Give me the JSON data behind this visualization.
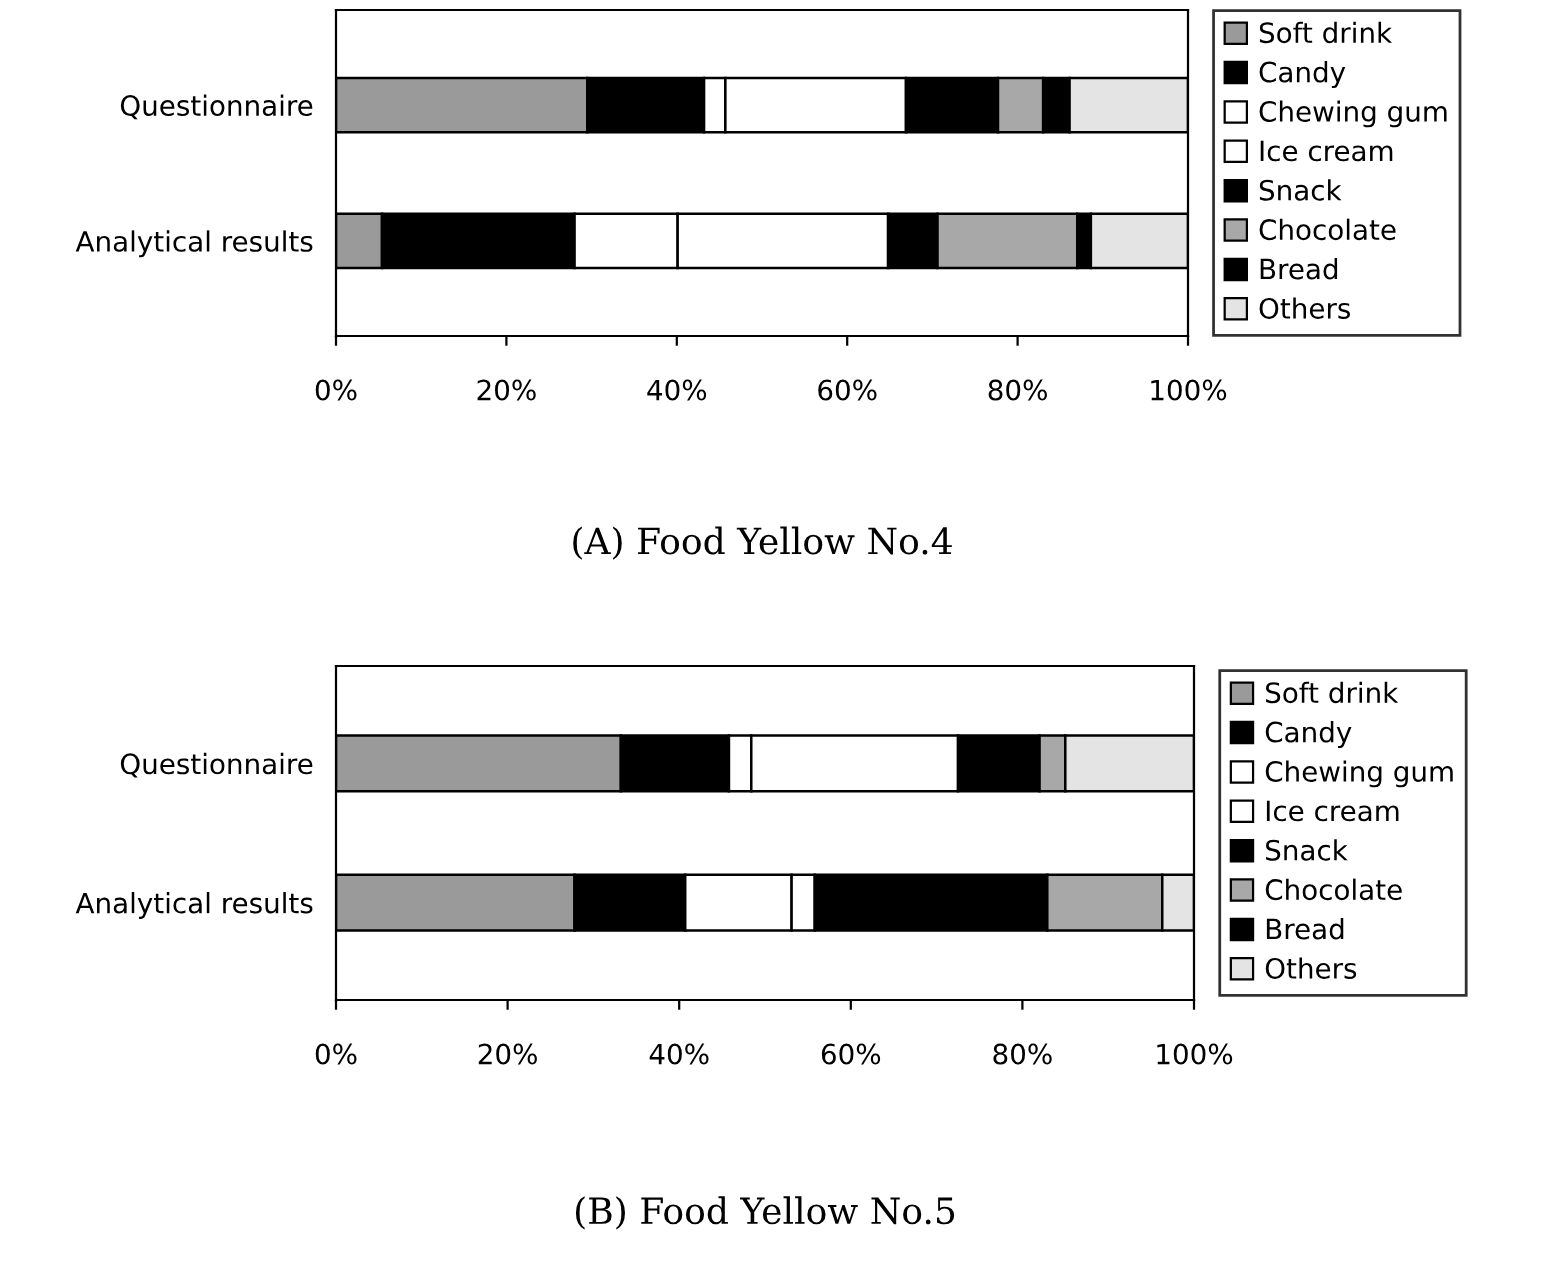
{
  "chart_data": [
    {
      "type": "bar",
      "stacked": true,
      "orientation": "horizontal",
      "title": "(A) Food Yellow No.4",
      "categories": [
        "Questionnaire",
        "Analytical results"
      ],
      "series": [
        {
          "name": "Soft drink",
          "color": "#9a9a9a",
          "values": [
            29.5,
            5.4
          ]
        },
        {
          "name": "Candy",
          "color": "#000000",
          "values": [
            13.7,
            22.6
          ]
        },
        {
          "name": "Chewing gum",
          "color": "#ffffff",
          "values": [
            2.5,
            12.1
          ]
        },
        {
          "name": "Ice cream",
          "color": "#ffffff",
          "values": [
            21.2,
            24.7
          ]
        },
        {
          "name": "Snack",
          "color": "#000000",
          "values": [
            10.8,
            5.8
          ]
        },
        {
          "name": "Chocolate",
          "color": "#a8a8a8",
          "values": [
            5.3,
            16.4
          ]
        },
        {
          "name": "Bread",
          "color": "#000000",
          "values": [
            3.1,
            1.6
          ]
        },
        {
          "name": "Others",
          "color": "#e4e4e4",
          "values": [
            13.9,
            11.4
          ]
        }
      ],
      "xlim": [
        0,
        100
      ],
      "xticks": [
        {
          "value": 0,
          "label": "0%"
        },
        {
          "value": 20,
          "label": "20%"
        },
        {
          "value": 40,
          "label": "40%"
        },
        {
          "value": 60,
          "label": "60%"
        },
        {
          "value": 80,
          "label": "80%"
        },
        {
          "value": 100,
          "label": "100%"
        }
      ],
      "legend": "right"
    },
    {
      "type": "bar",
      "stacked": true,
      "orientation": "horizontal",
      "title": "(B) Food Yellow No.5",
      "categories": [
        "Questionnaire",
        "Analytical results"
      ],
      "series": [
        {
          "name": "Soft drink",
          "color": "#9a9a9a",
          "values": [
            33.2,
            27.8
          ]
        },
        {
          "name": "Candy",
          "color": "#000000",
          "values": [
            12.6,
            12.9
          ]
        },
        {
          "name": "Chewing gum",
          "color": "#ffffff",
          "values": [
            2.6,
            12.4
          ]
        },
        {
          "name": "Ice cream",
          "color": "#ffffff",
          "values": [
            24.1,
            2.7
          ]
        },
        {
          "name": "Snack",
          "color": "#000000",
          "values": [
            9.5,
            27.1
          ]
        },
        {
          "name": "Chocolate",
          "color": "#a8a8a8",
          "values": [
            3.0,
            13.4
          ]
        },
        {
          "name": "Bread",
          "color": "#000000",
          "values": [
            0,
            0
          ]
        },
        {
          "name": "Others",
          "color": "#e4e4e4",
          "values": [
            15.0,
            3.7
          ]
        }
      ],
      "xlim": [
        0,
        100
      ],
      "xticks": [
        {
          "value": 0,
          "label": "0%"
        },
        {
          "value": 20,
          "label": "20%"
        },
        {
          "value": 40,
          "label": "40%"
        },
        {
          "value": 60,
          "label": "60%"
        },
        {
          "value": 80,
          "label": "80%"
        },
        {
          "value": 100,
          "label": "100%"
        }
      ],
      "legend": "right"
    }
  ]
}
